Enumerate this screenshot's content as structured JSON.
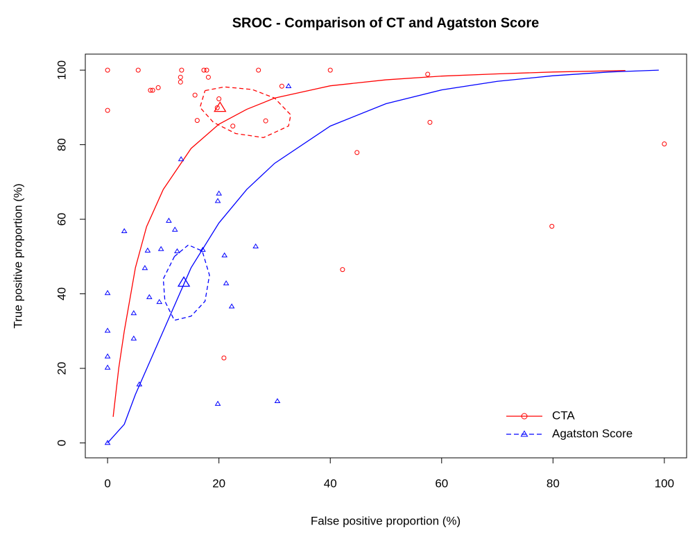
{
  "chart_data": {
    "type": "sroc",
    "title": "SROC - Comparison of CT and Agatston Score",
    "x_label": "False positive proportion (%)",
    "y_label": "True positive proportion (%)",
    "xlim": [
      -4,
      104
    ],
    "ylim": [
      -4,
      104.3
    ],
    "xticks": [
      0,
      20,
      40,
      60,
      80,
      100
    ],
    "yticks": [
      0,
      20,
      40,
      60,
      80,
      100
    ],
    "legend": "bottom-right",
    "series": [
      {
        "name": "CTA",
        "color": "#ff0000",
        "marker": "circle",
        "linestyle": "solid",
        "x": [
          0,
          0,
          5.5,
          7.7,
          8.1,
          9.1,
          13.1,
          13.3,
          13.1,
          17.3,
          17.8,
          18.1,
          15.7,
          16.1,
          20,
          19.7,
          22.5,
          28.4,
          27.1,
          31.3,
          40,
          57.5,
          57.9,
          44.8,
          42.2,
          20.9,
          79.8,
          100
        ],
        "y": [
          100,
          89.2,
          100,
          94.6,
          94.6,
          95.3,
          98.1,
          100,
          96.8,
          100,
          100,
          98.1,
          93.3,
          86.5,
          92.3,
          89.9,
          85,
          86.4,
          100,
          95.7,
          100,
          98.9,
          86,
          77.9,
          46.5,
          22.8,
          58.1,
          80.2
        ],
        "summary": {
          "x": 20.2,
          "y": 89.9
        },
        "curve": {
          "x": [
            1,
            2,
            3,
            5,
            7,
            10,
            15,
            20,
            25,
            30,
            40,
            50,
            60,
            70,
            80,
            93
          ],
          "y": [
            7,
            20,
            30,
            47,
            58,
            68,
            79,
            85.5,
            89.5,
            92.5,
            95.8,
            97.4,
            98.4,
            99,
            99.5,
            99.9
          ]
        },
        "region": {
          "x": [
            17.5,
            21,
            26,
            30,
            32.9,
            32.5,
            28,
            23,
            19,
            16.6,
            17.5
          ],
          "y": [
            94.5,
            95.5,
            94.8,
            92.5,
            88,
            85,
            81.9,
            83,
            86,
            90,
            94.5
          ]
        }
      },
      {
        "name": "Agatston Score",
        "color": "#0000ff",
        "marker": "triangle",
        "linestyle": "dashed",
        "x": [
          0,
          0,
          0,
          0,
          0,
          3,
          4.7,
          4.7,
          5.7,
          6.7,
          7.2,
          7.5,
          9.3,
          9.6,
          11,
          12.1,
          12.5,
          13.2,
          17.1,
          20,
          19.8,
          19.8,
          21,
          21.3,
          22.3,
          26.6,
          30.5,
          32.5
        ],
        "y": [
          0,
          20.2,
          23.2,
          30.1,
          40.2,
          56.8,
          28,
          34.8,
          15.7,
          46.9,
          51.6,
          39.1,
          37.8,
          52,
          59.6,
          57.2,
          51.4,
          76.1,
          51.8,
          66.9,
          64.9,
          10.5,
          50.3,
          42.8,
          36.6,
          52.7,
          11.2,
          95.7
        ],
        "summary": {
          "x": 13.7,
          "y": 43
        },
        "curve": {
          "x": [
            0,
            3,
            5,
            10,
            15,
            20,
            25,
            30,
            40,
            50,
            60,
            70,
            80,
            90,
            99
          ],
          "y": [
            0,
            5,
            13,
            30,
            47,
            59,
            68,
            75,
            85,
            91,
            94.7,
            97,
            98.5,
            99.5,
            100
          ]
        },
        "region": {
          "x": [
            12,
            14.5,
            17,
            18.3,
            17.5,
            15,
            12,
            10.3,
            10,
            12
          ],
          "y": [
            50,
            53.1,
            51.5,
            45,
            38,
            34,
            32.9,
            38,
            44,
            50
          ]
        }
      }
    ]
  }
}
